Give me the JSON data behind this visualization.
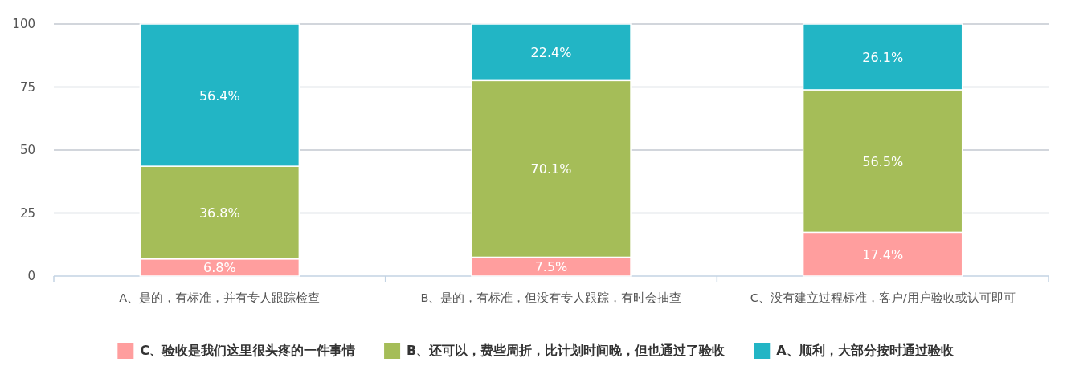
{
  "chart_data": {
    "type": "bar",
    "stacked": true,
    "categories": [
      "A、是的，有标准，并有专人跟踪检查",
      "B、是的，有标准，但没有专人跟踪，有时会抽查",
      "C、没有建立过程标准，客户/用户验收或认可即可"
    ],
    "series": [
      {
        "name": "C、验收是我们这里很头疼的一件事情",
        "color": "#ff9e9e",
        "values": [
          6.8,
          7.5,
          17.4
        ],
        "value_labels": [
          "6.8%",
          "7.5%",
          "17.4%"
        ]
      },
      {
        "name": "B、还可以，费些周折，比计划时间晚，但也通过了验收",
        "color": "#a5bd58",
        "values": [
          36.8,
          70.1,
          56.5
        ],
        "value_labels": [
          "36.8%",
          "70.1%",
          "56.5%"
        ]
      },
      {
        "name": "A、顺利，大部分按时通过验收",
        "color": "#22b5c5",
        "values": [
          56.4,
          22.4,
          26.1
        ],
        "value_labels": [
          "56.4%",
          "22.4%",
          "26.1%"
        ]
      }
    ],
    "ylim": [
      0,
      100
    ],
    "yticks": [
      0,
      25,
      50,
      75,
      100
    ],
    "grid": "y",
    "legend": "bottom"
  }
}
